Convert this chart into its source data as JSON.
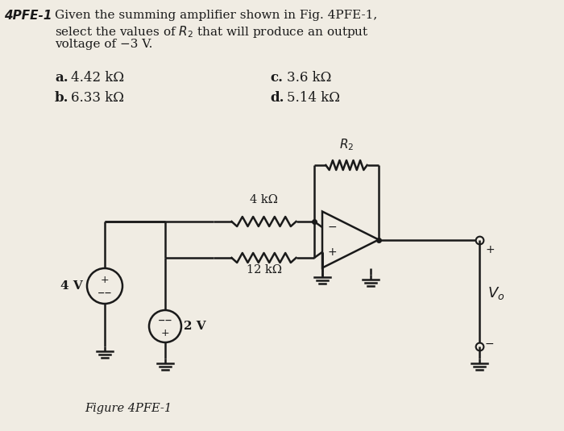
{
  "title_number": "4PFE-1",
  "title_text": "Given the summing amplifier shown in Fig. 4PFE-1,",
  "title_line2": "select the values of  $R_2$  that will produce an output",
  "title_line3": "voltage of −3 V.",
  "answer_a": "a.  4.42 kΩ",
  "answer_b": "b.  6.33 kΩ",
  "answer_c": "c.  3.6 kΩ",
  "answer_d": "d.  5.14 kΩ",
  "figure_label": "Figure 4PFE-1",
  "bg_color": "#f0ece3",
  "text_color": "#1a1a1a",
  "fig_width": 7.0,
  "fig_height": 5.35
}
